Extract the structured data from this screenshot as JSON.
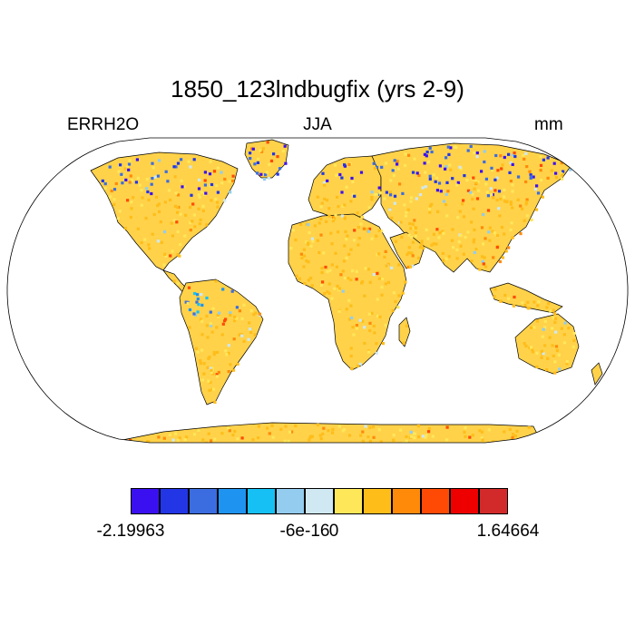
{
  "title": "1850_123lndbugfix (yrs 2-9)",
  "left_label": "ERRH2O",
  "center_label": "JJA",
  "right_label": "mm",
  "map": {
    "projection": "robinson",
    "ocean_color": "#ffffff",
    "land_base_color": "#ffd24a",
    "coastline_color": "#000000"
  },
  "colorbar": {
    "colors": [
      "#3b10f0",
      "#2236e6",
      "#3c6de0",
      "#1f93f0",
      "#16c0f4",
      "#93ccee",
      "#cfe8f2",
      "#ffe75a",
      "#ffbd1a",
      "#ff8a0a",
      "#ff4a05",
      "#ee0000",
      "#d22a2a"
    ],
    "labels": [
      {
        "text": "-2.19963",
        "boundary": 0
      },
      {
        "text": "-6e-16",
        "boundary": 6
      },
      {
        "text": "0",
        "boundary": 7
      },
      {
        "text": "1.64664",
        "boundary": 13
      }
    ]
  }
}
